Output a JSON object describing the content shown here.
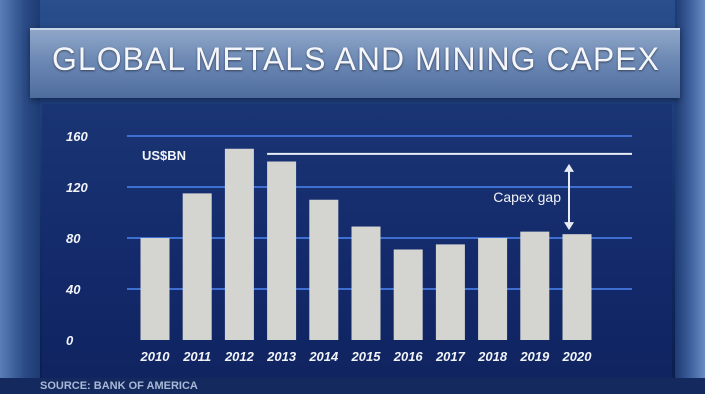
{
  "title": "GLOBAL METALS AND MINING CAPEX",
  "source": "SOURCE: BANK OF AMERICA",
  "chart_data": {
    "type": "bar",
    "title": "GLOBAL METALS AND MINING CAPEX",
    "unit_label": "US$BN",
    "categories": [
      "2010",
      "2011",
      "2012",
      "2013",
      "2014",
      "2015",
      "2016",
      "2017",
      "2018",
      "2019",
      "2020"
    ],
    "values": [
      80,
      115,
      150,
      140,
      110,
      89,
      71,
      75,
      80,
      85,
      83
    ],
    "yticks": [
      0,
      40,
      80,
      120,
      160
    ],
    "ylim": [
      0,
      160
    ],
    "grid": true,
    "reference_line": 146,
    "annotation": "Capex gap",
    "colors": {
      "bar": "#d4d4d0",
      "gridline": "#3f6fd0",
      "reference_line": "#e8ecf4",
      "text": "#f2f4f8"
    }
  }
}
